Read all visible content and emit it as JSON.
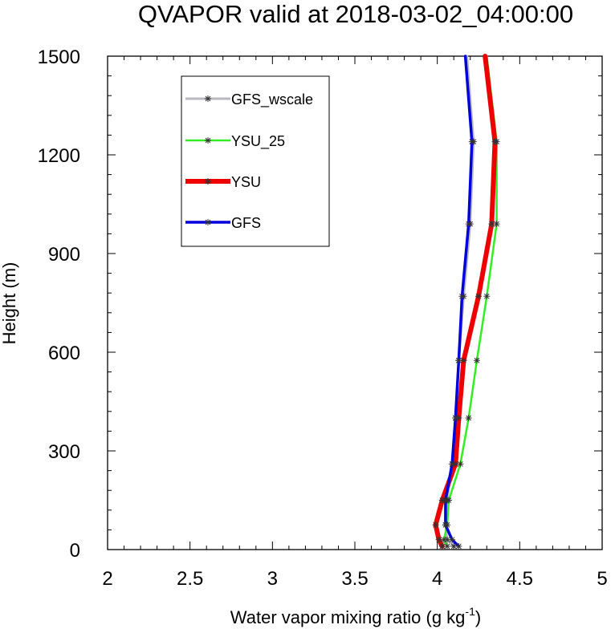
{
  "chart_data": {
    "type": "line",
    "title": "QVAPOR valid at 2018-03-02_04:00:00",
    "xlabel": "Water vapor mixing ratio (g kg",
    "xlabel_sup": "-1",
    "xlabel_end": ")",
    "ylabel": "Height (m)",
    "xlim": [
      2,
      5
    ],
    "ylim": [
      0,
      1500
    ],
    "x_ticks": [
      "2",
      "2.5",
      "3",
      "3.5",
      "4",
      "4.5",
      "5"
    ],
    "y_ticks": [
      "0",
      "300",
      "600",
      "900",
      "1200",
      "1500"
    ],
    "legend_position": "top-left",
    "series": [
      {
        "name": "GFS_wscale",
        "color": "#b8b8c0",
        "width": 3,
        "points": [
          [
            4.1,
            10
          ],
          [
            4.06,
            30
          ],
          [
            4.05,
            75
          ],
          [
            4.06,
            150
          ],
          [
            4.09,
            260
          ],
          [
            4.11,
            400
          ],
          [
            4.13,
            575
          ],
          [
            4.16,
            770
          ],
          [
            4.2,
            990
          ],
          [
            4.22,
            1240
          ],
          [
            4.18,
            1500
          ]
        ]
      },
      {
        "name": "YSU_25",
        "color": "#33ee22",
        "width": 2.5,
        "points": [
          [
            4.06,
            10
          ],
          [
            4.04,
            30
          ],
          [
            4.06,
            75
          ],
          [
            4.07,
            150
          ],
          [
            4.14,
            260
          ],
          [
            4.19,
            400
          ],
          [
            4.24,
            575
          ],
          [
            4.3,
            770
          ],
          [
            4.36,
            990
          ],
          [
            4.36,
            1240
          ],
          [
            4.3,
            1500
          ]
        ]
      },
      {
        "name": "YSU",
        "color": "#ee0000",
        "width": 6,
        "points": [
          [
            4.03,
            10
          ],
          [
            4.01,
            30
          ],
          [
            3.99,
            75
          ],
          [
            4.03,
            150
          ],
          [
            4.11,
            260
          ],
          [
            4.13,
            400
          ],
          [
            4.16,
            575
          ],
          [
            4.25,
            770
          ],
          [
            4.33,
            990
          ],
          [
            4.35,
            1240
          ],
          [
            4.29,
            1500
          ]
        ]
      },
      {
        "name": "GFS",
        "color": "#0000dd",
        "width": 3.5,
        "points": [
          [
            4.13,
            10
          ],
          [
            4.09,
            30
          ],
          [
            4.05,
            75
          ],
          [
            4.05,
            150
          ],
          [
            4.09,
            260
          ],
          [
            4.11,
            400
          ],
          [
            4.13,
            575
          ],
          [
            4.15,
            770
          ],
          [
            4.19,
            990
          ],
          [
            4.21,
            1240
          ],
          [
            4.17,
            1500
          ]
        ]
      }
    ],
    "grid": false
  }
}
